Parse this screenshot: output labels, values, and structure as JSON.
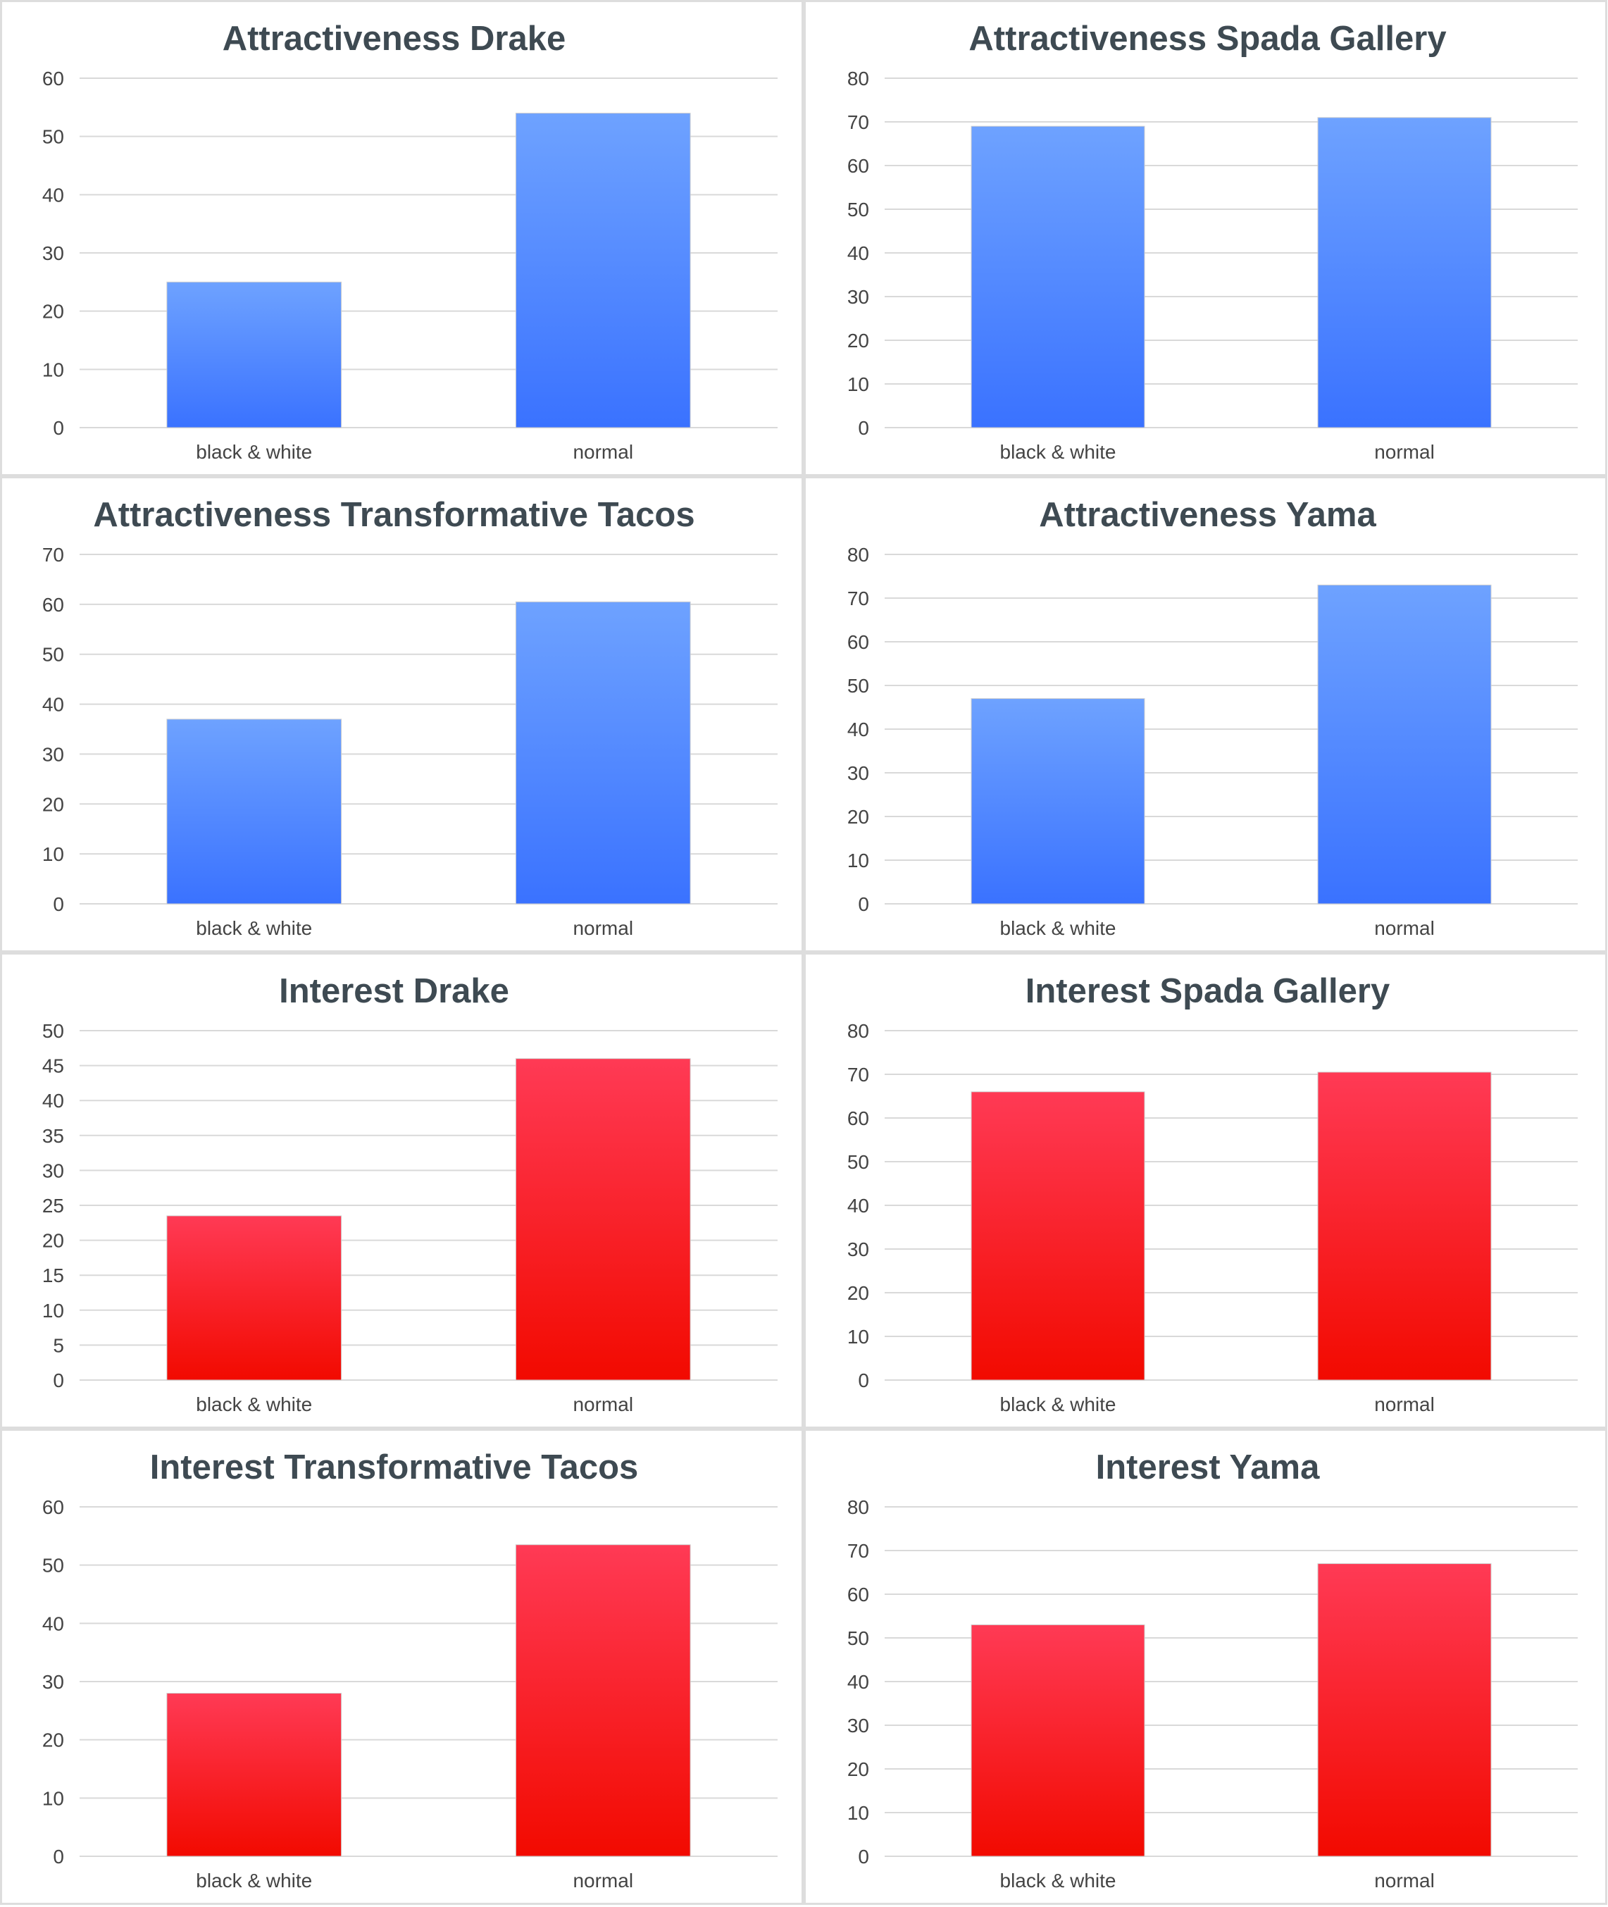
{
  "colors": {
    "blue_top": "#6ea2ff",
    "blue_bottom": "#3a72ff",
    "red_top": "#ff3a55",
    "red_bottom": "#f20a00",
    "gridline": "#d9d9d9",
    "border": "#dddddd"
  },
  "chart_data": [
    {
      "type": "bar",
      "title": "Attractiveness Drake",
      "categories": [
        "black & white",
        "normal"
      ],
      "values": [
        25,
        54
      ],
      "ylim": [
        0,
        60
      ],
      "yticks": [
        0,
        10,
        20,
        30,
        40,
        50,
        60
      ],
      "color": "blue",
      "grid": true
    },
    {
      "type": "bar",
      "title": "Attractiveness Spada Gallery",
      "categories": [
        "black & white",
        "normal"
      ],
      "values": [
        69,
        71
      ],
      "ylim": [
        0,
        80
      ],
      "yticks": [
        0,
        10,
        20,
        30,
        40,
        50,
        60,
        70,
        80
      ],
      "color": "blue",
      "grid": true
    },
    {
      "type": "bar",
      "title": "Attractiveness Transformative Tacos",
      "categories": [
        "black & white",
        "normal"
      ],
      "values": [
        37,
        60.5
      ],
      "ylim": [
        0,
        70
      ],
      "yticks": [
        0,
        10,
        20,
        30,
        40,
        50,
        60,
        70
      ],
      "color": "blue",
      "grid": true
    },
    {
      "type": "bar",
      "title": "Attractiveness Yama",
      "categories": [
        "black & white",
        "normal"
      ],
      "values": [
        47,
        73
      ],
      "ylim": [
        0,
        80
      ],
      "yticks": [
        0,
        10,
        20,
        30,
        40,
        50,
        60,
        70,
        80
      ],
      "color": "blue",
      "grid": true
    },
    {
      "type": "bar",
      "title": "Interest Drake",
      "categories": [
        "black & white",
        "normal"
      ],
      "values": [
        23.5,
        46
      ],
      "ylim": [
        0,
        50
      ],
      "yticks": [
        0,
        5,
        10,
        15,
        20,
        25,
        30,
        35,
        40,
        45,
        50
      ],
      "color": "red",
      "grid": true
    },
    {
      "type": "bar",
      "title": "Interest Spada Gallery",
      "categories": [
        "black & white",
        "normal"
      ],
      "values": [
        66,
        70.5
      ],
      "ylim": [
        0,
        80
      ],
      "yticks": [
        0,
        10,
        20,
        30,
        40,
        50,
        60,
        70,
        80
      ],
      "color": "red",
      "grid": true
    },
    {
      "type": "bar",
      "title": "Interest Transformative Tacos",
      "categories": [
        "black & white",
        "normal"
      ],
      "values": [
        28,
        53.5
      ],
      "ylim": [
        0,
        60
      ],
      "yticks": [
        0,
        10,
        20,
        30,
        40,
        50,
        60
      ],
      "color": "red",
      "grid": true
    },
    {
      "type": "bar",
      "title": "Interest Yama",
      "categories": [
        "black & white",
        "normal"
      ],
      "values": [
        53,
        67
      ],
      "ylim": [
        0,
        80
      ],
      "yticks": [
        0,
        10,
        20,
        30,
        40,
        50,
        60,
        70,
        80
      ],
      "color": "red",
      "grid": true
    }
  ]
}
